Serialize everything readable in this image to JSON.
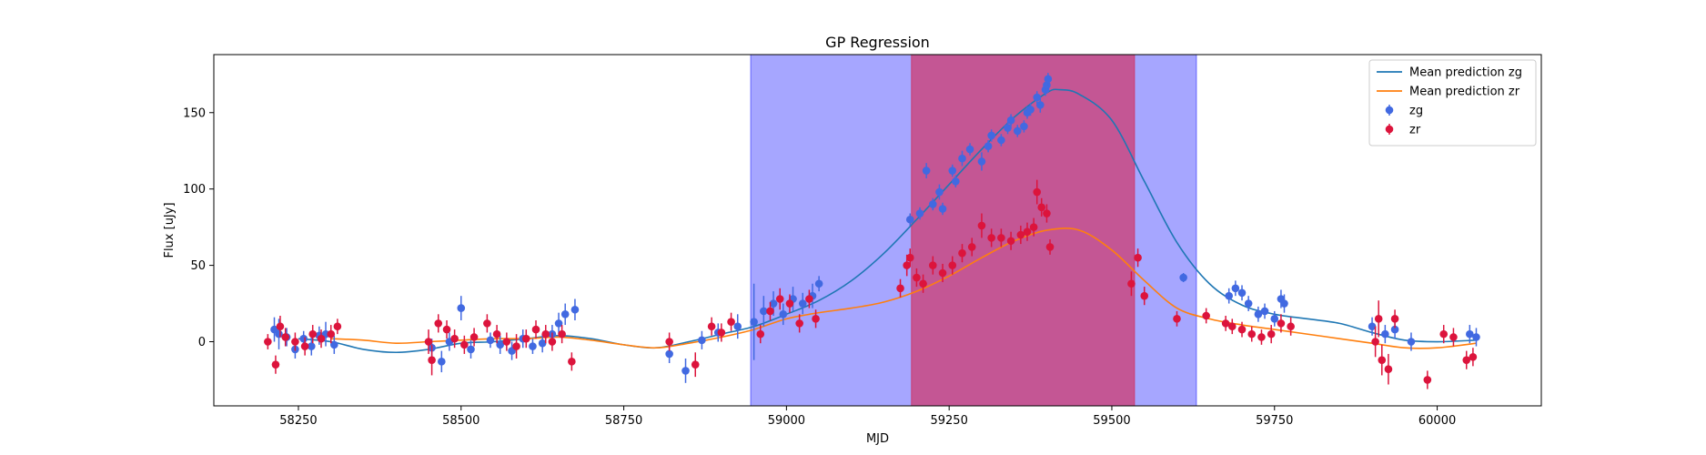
{
  "chart_data": {
    "type": "scatter",
    "title": "GP Regression",
    "xlabel": "MJD",
    "ylabel": "Flux [uJy]",
    "xlim": [
      58120,
      60160
    ],
    "ylim": [
      -42,
      188
    ],
    "xticks": [
      58250,
      58500,
      58750,
      59000,
      59250,
      59500,
      59750,
      60000
    ],
    "yticks": [
      0,
      50,
      100,
      150
    ],
    "grid": false,
    "legend_position": "top-right",
    "legend": [
      {
        "label": "Mean prediction zg",
        "kind": "line",
        "color": "#1f77b4"
      },
      {
        "label": "Mean prediction zr",
        "kind": "line",
        "color": "#ff7f0e"
      },
      {
        "label": "zg",
        "kind": "errorbar",
        "color": "#4169e1"
      },
      {
        "label": "zr",
        "kind": "errorbar",
        "color": "#dc143c"
      }
    ],
    "shaded_regions": [
      {
        "x": [
          58945,
          59630
        ],
        "color": "#0000ff",
        "opacity": 0.35
      },
      {
        "x": [
          59192,
          59535
        ],
        "color": "#dc143c",
        "opacity": 0.55
      }
    ],
    "series": [
      {
        "name": "Mean prediction zg",
        "kind": "line",
        "color": "#1f77b4",
        "x": [
          58250,
          58300,
          58350,
          58400,
          58450,
          58500,
          58550,
          58600,
          58650,
          58700,
          58750,
          58800,
          58850,
          58900,
          58950,
          59000,
          59050,
          59100,
          59150,
          59200,
          59250,
          59300,
          59350,
          59400,
          59420,
          59450,
          59500,
          59550,
          59600,
          59650,
          59700,
          59750,
          59800,
          59850,
          59900,
          59950,
          60000,
          60060
        ],
        "y": [
          2,
          0,
          -5,
          -7,
          -5,
          -1,
          0,
          2,
          4,
          2,
          -2,
          -4,
          0,
          5,
          10,
          18,
          27,
          40,
          58,
          80,
          103,
          126,
          147,
          163,
          165,
          162,
          145,
          105,
          65,
          38,
          24,
          18,
          15,
          12,
          6,
          1,
          0,
          1
        ]
      },
      {
        "name": "Mean prediction zr",
        "kind": "line",
        "color": "#ff7f0e",
        "x": [
          58300,
          58350,
          58400,
          58450,
          58500,
          58550,
          58600,
          58650,
          58700,
          58750,
          58800,
          58850,
          58900,
          58950,
          59000,
          59050,
          59100,
          59150,
          59200,
          59250,
          59300,
          59350,
          59400,
          59450,
          59500,
          59550,
          59600,
          59650,
          59700,
          59750,
          59800,
          59850,
          59900,
          59950,
          60000,
          60060
        ],
        "y": [
          2,
          1,
          -1,
          0,
          1,
          2,
          2,
          3,
          1,
          -2,
          -4,
          -1,
          3,
          8,
          15,
          19,
          22,
          26,
          33,
          43,
          55,
          66,
          73,
          73,
          60,
          40,
          22,
          15,
          11,
          8,
          5,
          2,
          -1,
          -4,
          -4,
          -1
        ]
      },
      {
        "name": "zg",
        "kind": "errorbar",
        "color": "#4169e1",
        "x": [
          58213,
          58220,
          58232,
          58245,
          58258,
          58270,
          58282,
          58292,
          58305,
          58455,
          58470,
          58482,
          58500,
          58515,
          58545,
          58560,
          58578,
          58595,
          58610,
          58625,
          58640,
          58650,
          58660,
          58675,
          58820,
          58845,
          58870,
          58895,
          58925,
          58950,
          58965,
          58980,
          58995,
          59010,
          59025,
          59040,
          59050,
          59190,
          59205,
          59215,
          59225,
          59235,
          59240,
          59255,
          59260,
          59270,
          59282,
          59300,
          59310,
          59315,
          59330,
          59340,
          59345,
          59355,
          59365,
          59370,
          59375,
          59385,
          59390,
          59398,
          59400,
          59402,
          59610,
          59680,
          59690,
          59700,
          59710,
          59725,
          59735,
          59750,
          59760,
          59765,
          59900,
          59920,
          59935,
          59960,
          60050,
          60060
        ],
        "y": [
          8,
          5,
          3,
          -5,
          2,
          -3,
          4,
          5,
          -2,
          -4,
          -13,
          0,
          22,
          -5,
          1,
          -2,
          -6,
          2,
          -3,
          -1,
          5,
          12,
          18,
          21,
          -8,
          -19,
          1,
          6,
          10,
          13,
          20,
          25,
          18,
          28,
          25,
          30,
          38,
          80,
          84,
          112,
          90,
          98,
          87,
          112,
          105,
          120,
          126,
          118,
          128,
          135,
          132,
          140,
          145,
          138,
          141,
          150,
          152,
          160,
          155,
          165,
          168,
          172,
          42,
          30,
          35,
          32,
          25,
          18,
          20,
          15,
          28,
          25,
          10,
          5,
          8,
          0,
          5,
          3
        ],
        "err": [
          8,
          10,
          6,
          6,
          5,
          6,
          6,
          8,
          6,
          6,
          7,
          6,
          8,
          6,
          5,
          6,
          6,
          6,
          5,
          6,
          6,
          7,
          7,
          7,
          6,
          8,
          6,
          6,
          8,
          25,
          10,
          8,
          7,
          8,
          7,
          8,
          5,
          4,
          4,
          5,
          4,
          5,
          4,
          4,
          4,
          5,
          4,
          6,
          4,
          4,
          4,
          4,
          4,
          4,
          4,
          4,
          4,
          4,
          5,
          4,
          5,
          4,
          3,
          5,
          5,
          5,
          5,
          5,
          5,
          5,
          6,
          6,
          6,
          6,
          6,
          6,
          6,
          6
        ]
      },
      {
        "name": "zr",
        "kind": "errorbar",
        "color": "#dc143c",
        "x": [
          58203,
          58215,
          58222,
          58230,
          58245,
          58260,
          58272,
          58285,
          58300,
          58310,
          58450,
          58455,
          58465,
          58478,
          58490,
          58505,
          58520,
          58540,
          58555,
          58570,
          58585,
          58600,
          58615,
          58630,
          58640,
          58655,
          58670,
          58820,
          58860,
          58885,
          58900,
          58915,
          58960,
          58975,
          58990,
          59005,
          59020,
          59035,
          59045,
          59175,
          59185,
          59190,
          59200,
          59210,
          59225,
          59240,
          59255,
          59270,
          59285,
          59300,
          59315,
          59330,
          59345,
          59360,
          59370,
          59380,
          59385,
          59392,
          59400,
          59405,
          59530,
          59540,
          59550,
          59600,
          59645,
          59675,
          59685,
          59700,
          59715,
          59730,
          59745,
          59760,
          59775,
          59905,
          59910,
          59915,
          59925,
          59935,
          59985,
          60010,
          60025,
          60045,
          60055
        ],
        "y": [
          0,
          -15,
          10,
          3,
          0,
          -3,
          5,
          2,
          5,
          10,
          0,
          -12,
          12,
          8,
          2,
          -2,
          3,
          12,
          5,
          0,
          -3,
          2,
          8,
          5,
          0,
          5,
          -13,
          0,
          -15,
          10,
          6,
          13,
          5,
          20,
          28,
          25,
          12,
          28,
          15,
          35,
          50,
          55,
          42,
          38,
          50,
          45,
          50,
          58,
          62,
          76,
          68,
          68,
          66,
          70,
          72,
          75,
          98,
          88,
          84,
          62,
          38,
          55,
          30,
          15,
          17,
          12,
          10,
          8,
          5,
          3,
          5,
          12,
          10,
          0,
          15,
          -12,
          -18,
          15,
          -25,
          5,
          3,
          -12,
          -10
        ],
        "err": [
          5,
          6,
          7,
          6,
          6,
          6,
          6,
          6,
          6,
          5,
          8,
          10,
          6,
          6,
          6,
          6,
          6,
          6,
          6,
          6,
          8,
          6,
          6,
          6,
          6,
          6,
          6,
          6,
          8,
          6,
          6,
          6,
          6,
          6,
          7,
          6,
          6,
          6,
          6,
          6,
          7,
          6,
          6,
          6,
          6,
          6,
          6,
          6,
          6,
          8,
          6,
          6,
          6,
          6,
          6,
          6,
          8,
          6,
          6,
          5,
          8,
          6,
          6,
          5,
          5,
          5,
          5,
          5,
          5,
          5,
          6,
          6,
          6,
          10,
          12,
          10,
          10,
          6,
          6,
          6,
          6,
          6,
          6
        ]
      }
    ]
  }
}
